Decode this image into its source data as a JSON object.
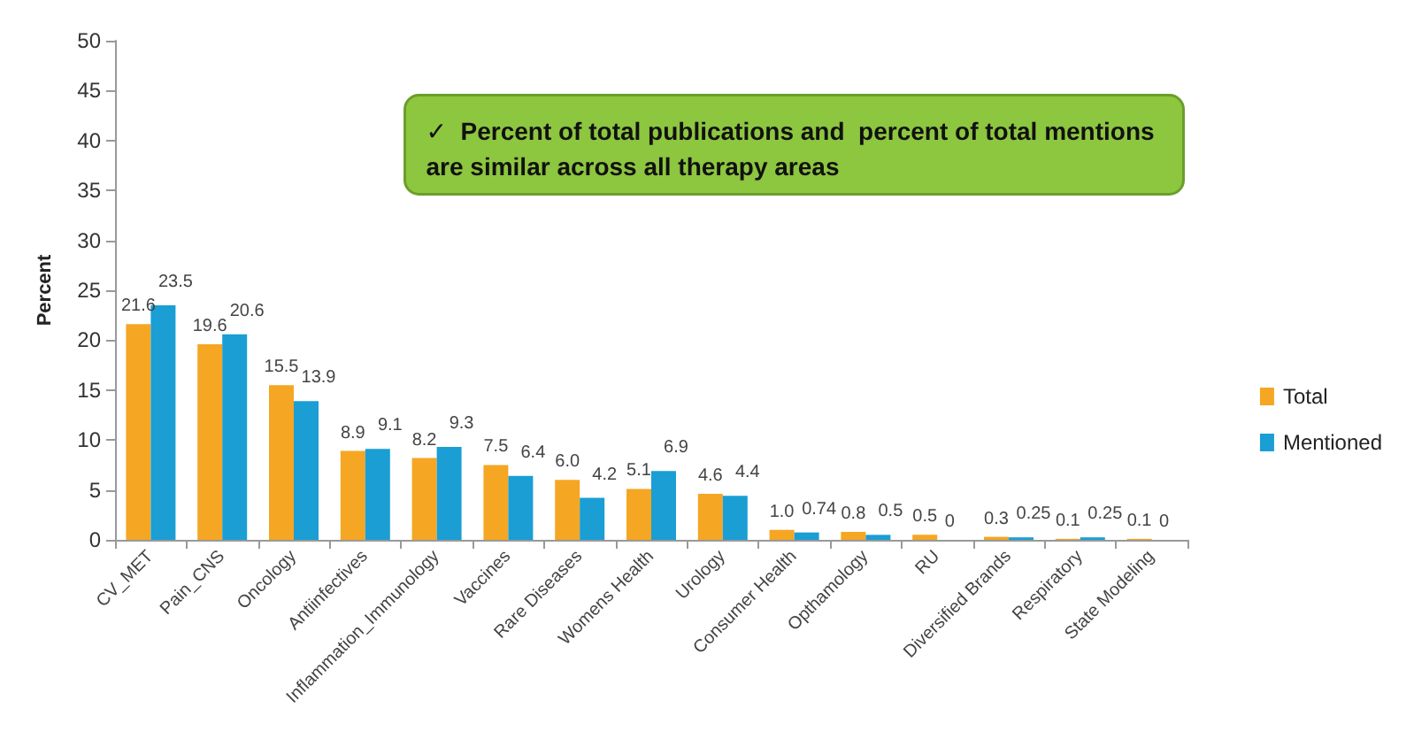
{
  "chart_data": {
    "type": "bar",
    "ylabel": "Percent",
    "categories": [
      "CV_MET",
      "Pain_CNS",
      "Oncology",
      "Antiinfectives",
      "Inflammation_Immunology",
      "Vaccines",
      "Rare Diseases",
      "Womens Health",
      "Urology",
      "Consumer Health",
      "Opthamology",
      "RU",
      "Diversified Brands",
      "Respiratory",
      "State Modeling"
    ],
    "series": [
      {
        "name": "Total",
        "color": "#f5a623",
        "values": [
          21.6,
          19.6,
          15.5,
          8.9,
          8.2,
          7.5,
          6.0,
          5.1,
          4.6,
          1.0,
          0.8,
          0.5,
          0.3,
          0.1,
          0.1
        ],
        "value_labels": [
          "21.6",
          "19.6",
          "15.5",
          "8.9",
          "8.2",
          "7.5",
          "6.0",
          "5.1",
          "4.6",
          "1.0",
          "0.8",
          "0.5",
          "0.3",
          "0.1",
          "0.1"
        ]
      },
      {
        "name": "Mentioned",
        "color": "#1a9ed4",
        "values": [
          23.5,
          20.6,
          13.9,
          9.1,
          9.3,
          6.4,
          4.2,
          6.9,
          4.4,
          0.74,
          0.5,
          0,
          0.25,
          0.25,
          0
        ],
        "value_labels": [
          "23.5",
          "20.6",
          "13.9",
          "9.1",
          "9.3",
          "6.4",
          "4.2",
          "6.9",
          "4.4",
          "0.74",
          "0.5",
          "0",
          "0.25",
          "0.25",
          "0"
        ]
      }
    ],
    "ylim": [
      0,
      50
    ],
    "yticks": [
      0,
      5,
      10,
      15,
      20,
      25,
      30,
      35,
      40,
      45,
      50
    ],
    "grid": false,
    "legend": "right",
    "annotations": [
      "✓  Percent of total publications and  percent of total mentions are similar across all therapy areas"
    ]
  }
}
